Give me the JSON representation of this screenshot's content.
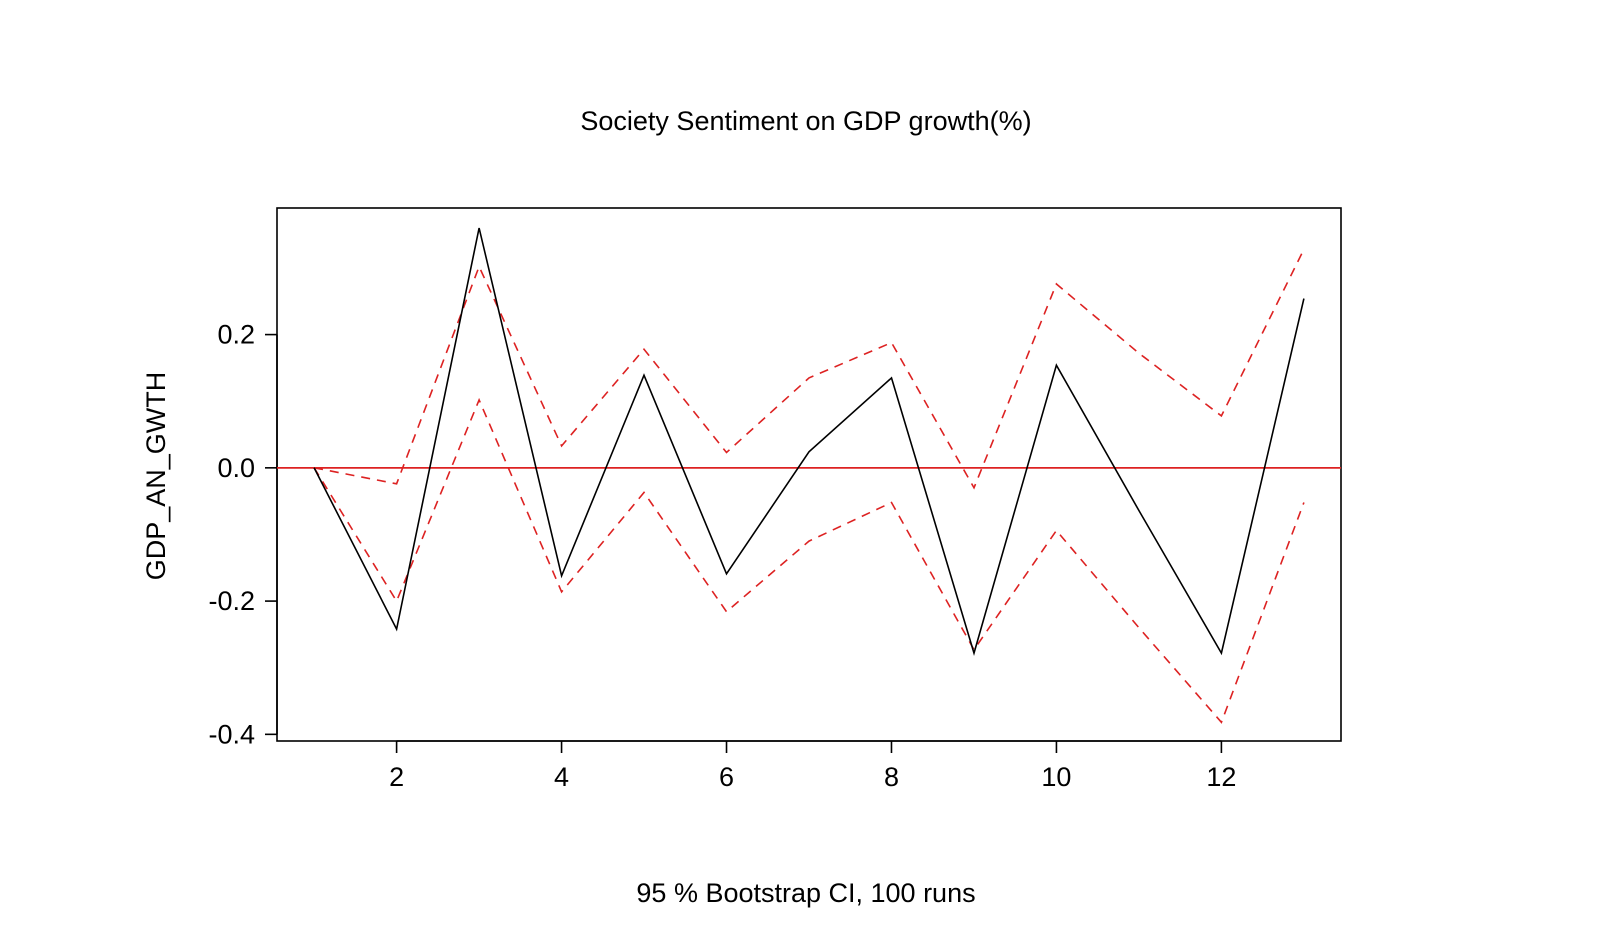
{
  "chart_data": {
    "type": "line",
    "title": "Society Sentiment on GDP growth(%)",
    "xlabel": "95 % Bootstrap CI,  100 runs",
    "ylabel": "GDP_AN_GWTH",
    "xlim": [
      0.55,
      13.45
    ],
    "ylim": [
      -0.41,
      0.39
    ],
    "x_ticks": [
      2,
      4,
      6,
      8,
      10,
      12
    ],
    "x_tick_labels": [
      "2",
      "4",
      "6",
      "8",
      "10",
      "12"
    ],
    "y_ticks": [
      -0.4,
      -0.2,
      0.0,
      0.2
    ],
    "y_tick_labels": [
      "-0.4",
      "-0.2",
      "0.0",
      "0.2"
    ],
    "x": [
      1,
      2,
      3,
      4,
      5,
      6,
      7,
      8,
      9,
      10,
      11,
      12,
      13
    ],
    "series": [
      {
        "role": "response",
        "color": "#000000",
        "dash": "solid",
        "values": [
          0.0,
          -0.242,
          0.36,
          -0.162,
          0.139,
          -0.159,
          0.024,
          0.135,
          -0.278,
          0.154,
          -0.064,
          -0.278,
          0.254
        ]
      },
      {
        "role": "upper",
        "color": "#dd2222",
        "dash": "dashed",
        "values": [
          0.0,
          -0.024,
          0.302,
          0.033,
          0.178,
          0.023,
          0.135,
          0.188,
          -0.03,
          0.276,
          0.172,
          0.078,
          0.328
        ]
      },
      {
        "role": "lower",
        "color": "#dd2222",
        "dash": "dashed",
        "values": [
          0.0,
          -0.2,
          0.102,
          -0.186,
          -0.037,
          -0.216,
          -0.11,
          -0.052,
          -0.273,
          -0.094,
          -0.24,
          -0.382,
          -0.052
        ]
      }
    ],
    "reference_line": {
      "y": 0,
      "color": "#dd2222"
    },
    "grid": false,
    "legend": false
  }
}
